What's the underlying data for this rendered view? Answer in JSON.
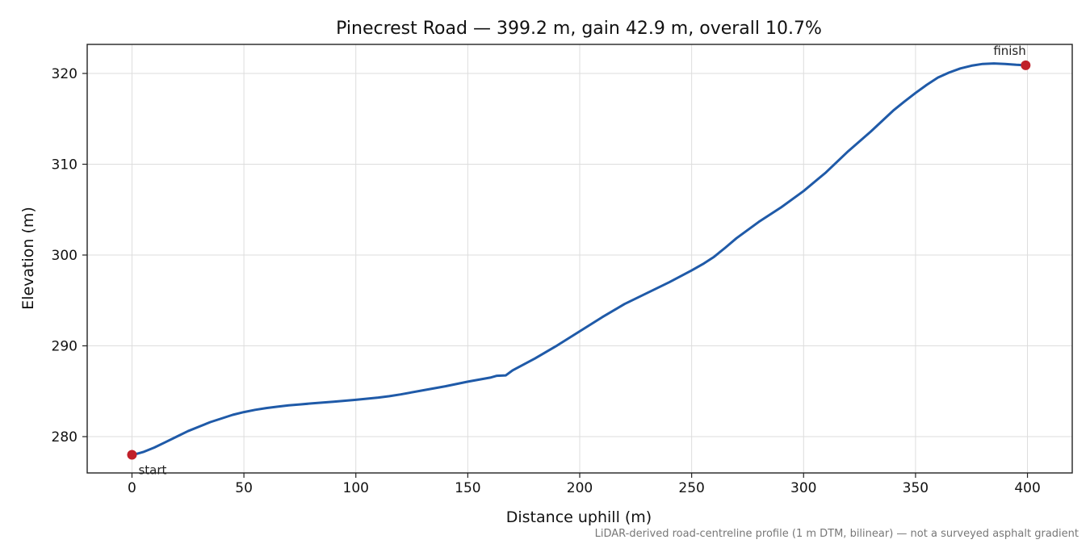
{
  "chart_data": {
    "type": "line",
    "title": "Pinecrest Road — 399.2 m, gain 42.9 m, overall 10.7%",
    "xlabel": "Distance uphill (m)",
    "ylabel": "Elevation (m)",
    "footnote": "LiDAR-derived road-centreline profile (1 m DTM, bilinear) — not a surveyed asphalt gradient",
    "xlim": [
      -20,
      420
    ],
    "ylim": [
      276,
      323.2
    ],
    "xticks": [
      0,
      50,
      100,
      150,
      200,
      250,
      300,
      350,
      400
    ],
    "yticks": [
      280,
      290,
      300,
      310,
      320
    ],
    "grid": true,
    "line_color": "#1f5aa8",
    "marker_color": "#c0202a",
    "series": [
      {
        "x": [
          0,
          2,
          5,
          10,
          15,
          20,
          25,
          30,
          35,
          40,
          45,
          50,
          55,
          60,
          65,
          70,
          75,
          80,
          90,
          100,
          110,
          115,
          120,
          130,
          140,
          150,
          160,
          163,
          167,
          170,
          180,
          190,
          200,
          210,
          220,
          230,
          240,
          250,
          255,
          260,
          265,
          270,
          280,
          290,
          300,
          310,
          320,
          330,
          340,
          345,
          350,
          355,
          360,
          365,
          370,
          375,
          380,
          385,
          390,
          395,
          399.2
        ],
        "y": [
          278.0,
          278.1,
          278.3,
          278.8,
          279.4,
          280.0,
          280.6,
          281.1,
          281.6,
          282.0,
          282.4,
          282.7,
          282.95,
          283.15,
          283.3,
          283.45,
          283.55,
          283.65,
          283.85,
          284.05,
          284.3,
          284.45,
          284.65,
          285.1,
          285.55,
          286.05,
          286.5,
          286.7,
          286.75,
          287.3,
          288.6,
          290.05,
          291.6,
          293.15,
          294.6,
          295.8,
          297.0,
          298.3,
          299.0,
          299.8,
          300.8,
          301.85,
          303.65,
          305.25,
          307.05,
          309.1,
          311.45,
          313.6,
          315.9,
          316.9,
          317.85,
          318.75,
          319.55,
          320.1,
          320.55,
          320.85,
          321.05,
          321.1,
          321.05,
          320.95,
          320.9
        ]
      }
    ],
    "annotations": [
      {
        "label": "start",
        "x": 0,
        "y": 278.0
      },
      {
        "label": "finish",
        "x": 399.2,
        "y": 320.9
      }
    ]
  }
}
